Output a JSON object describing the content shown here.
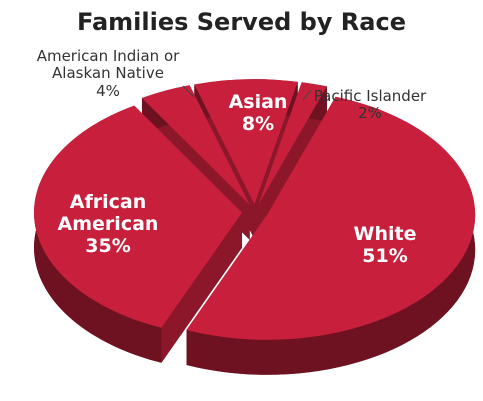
{
  "chart_data": {
    "type": "pie",
    "title": "Families Served by Race",
    "categories": [
      "Pacific Islander",
      "White",
      "African American",
      "American Indian or Alaskan Native",
      "Asian"
    ],
    "values": [
      2,
      51,
      35,
      4,
      8
    ],
    "value_labels": [
      "2%",
      "51%",
      "35%",
      "4%",
      "8%"
    ],
    "color": "#c8203c"
  }
}
